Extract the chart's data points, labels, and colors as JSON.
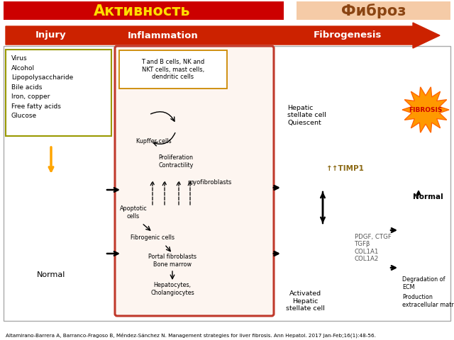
{
  "title_left": "Активность",
  "title_right": "Фиброз",
  "title_left_bg": "#cc0000",
  "title_right_bg": "#f5cba7",
  "title_left_color": "#ffdd00",
  "title_right_color": "#8B4513",
  "arrow_color": "#cc2200",
  "header_labels": [
    "Injury",
    "Inflammation",
    "Fibrogenesis"
  ],
  "injury_list": [
    "Virus",
    "Alcohol",
    "Lipopolysaccharide",
    "Bile acids",
    "Iron, copper",
    "Free fatty acids",
    "Glucose"
  ],
  "inflammation_box_text": "T and B cells, NK and\nNKT cells, mast cells,\ndendritic cells",
  "timp1_text": "↑↑TIMP1",
  "fibrosis_text": "FIBROSIS",
  "normal_text": "Normal",
  "activated_text": "Activated\nHepatic\nstellate cell",
  "quiescent_text": "Hepatic\nstellate cell\nQuiescent",
  "factors_text": "PDGF, CTGF\nTGFβ\nCOL1A1\nCOL1A2",
  "degradation_text": "Degradation of\nECM",
  "production_text": "Production\nextracellular matrix",
  "normal_liver_text": "Normal",
  "citation": "Altamirano-Barrera A, Barranco-Fragoso B, Méndez-Sánchez N. Management strategies for liver fibrosis. Ann Hepatol. 2017 Jan-Feb;16(1):48-56.",
  "bg_color": "#ffffff",
  "inflammation_rect_color": "#c0392b",
  "star_face": "#ff9900",
  "star_edge": "#ff6600",
  "fibrosis_color": "#cc0000"
}
